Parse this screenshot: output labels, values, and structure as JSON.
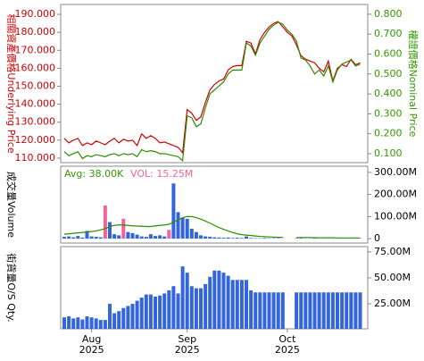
{
  "chart_data": [
    {
      "type": "line",
      "y_label": "相關資產價格Underlying Price",
      "y_label_color": "#cc0000",
      "y2_label": "權證價格Nominal Price",
      "y2_label_color": "#339900",
      "ylim": [
        107.5,
        195.5
      ],
      "yticks": [
        {
          "value": 110,
          "label": "110.000"
        },
        {
          "value": 120,
          "label": "120.000"
        },
        {
          "value": 130,
          "label": "130.000"
        },
        {
          "value": 140,
          "label": "140.000"
        },
        {
          "value": 150,
          "label": "150.000"
        },
        {
          "value": 160,
          "label": "160.000"
        },
        {
          "value": 170,
          "label": "170.000"
        },
        {
          "value": 180,
          "label": "180.000"
        },
        {
          "value": 190,
          "label": "190.000"
        }
      ],
      "y2lim": [
        0.055,
        0.849
      ],
      "y2ticks": [
        {
          "value": 0.1,
          "label": "0.100"
        },
        {
          "value": 0.2,
          "label": "0.200"
        },
        {
          "value": 0.3,
          "label": "0.300"
        },
        {
          "value": 0.4,
          "label": "0.400"
        },
        {
          "value": 0.5,
          "label": "0.500"
        },
        {
          "value": 0.6,
          "label": "0.600"
        },
        {
          "value": 0.7,
          "label": "0.700"
        },
        {
          "value": 0.8,
          "label": "0.800"
        }
      ],
      "series": [
        {
          "color": "#cc0000",
          "values": [
            121,
            118.5,
            120,
            121,
            117,
            118.5,
            117.5,
            119.5,
            118.5,
            117.5,
            119.5,
            121,
            118.5,
            120.5,
            119.5,
            120,
            117,
            123.5,
            121,
            122.5,
            121,
            118.5,
            119,
            118,
            117,
            116,
            113,
            137,
            135,
            131,
            133,
            141,
            148,
            151,
            153,
            154,
            159,
            161,
            161.5,
            161.5,
            175,
            174,
            168,
            176,
            180,
            183,
            185,
            186,
            183,
            180,
            178,
            173,
            167,
            165,
            164,
            163,
            160,
            158,
            164,
            153,
            160,
            162,
            161,
            165,
            162,
            163
          ]
        },
        {
          "color": "#2e8b00",
          "axis": "y2",
          "values": [
            0.11,
            0.09,
            0.1,
            0.11,
            0.075,
            0.09,
            0.085,
            0.095,
            0.09,
            0.085,
            0.095,
            0.1,
            0.09,
            0.1,
            0.095,
            0.1,
            0.085,
            0.12,
            0.11,
            0.115,
            0.11,
            0.1,
            0.1,
            0.095,
            0.09,
            0.085,
            0.065,
            0.29,
            0.28,
            0.235,
            0.25,
            0.33,
            0.4,
            0.42,
            0.44,
            0.46,
            0.5,
            0.52,
            0.52,
            0.52,
            0.656,
            0.64,
            0.594,
            0.656,
            0.69,
            0.725,
            0.745,
            0.76,
            0.75,
            0.72,
            0.7,
            0.665,
            0.58,
            0.57,
            0.54,
            0.5,
            0.52,
            0.49,
            0.54,
            0.46,
            0.52,
            0.55,
            0.56,
            0.57,
            0.54,
            0.55
          ]
        }
      ]
    },
    {
      "type": "bar",
      "y_label": "成交量Volume",
      "annotations": [
        {
          "text": "Avg: 38.00K",
          "color": "#339900"
        },
        {
          "text": "VOL: 15.25M",
          "color": "#ee6699"
        }
      ],
      "ylim": [
        -20,
        328
      ],
      "yticks": [
        0,
        {
          "value": 100,
          "label": "100.00M"
        },
        {
          "value": 200,
          "label": "200.00M"
        },
        {
          "value": 300,
          "label": "300.00M"
        }
      ],
      "series": [
        {
          "color": "#3366dd",
          "values": [
            8,
            10,
            6,
            12,
            5,
            35,
            10,
            8,
            6,
            null,
            75,
            20,
            15,
            null,
            30,
            25,
            18,
            10,
            8,
            20,
            12,
            15,
            10,
            null,
            250,
            120,
            95,
            90,
            45,
            30,
            15,
            10,
            8,
            6,
            5,
            4,
            5,
            3,
            4,
            3,
            10,
            3,
            2,
            2,
            3,
            2,
            2,
            2,
            1,
            null,
            null,
            2,
            2,
            1,
            1,
            2,
            1,
            1,
            1,
            1,
            1,
            1,
            1,
            1,
            1,
            1
          ]
        },
        {
          "color": "#ee6699",
          "values": [
            null,
            null,
            null,
            null,
            null,
            null,
            null,
            null,
            null,
            150,
            null,
            null,
            null,
            90,
            null,
            null,
            null,
            null,
            null,
            null,
            null,
            null,
            null,
            40,
            null,
            null,
            null,
            null,
            null,
            null,
            null,
            null,
            null,
            null,
            null,
            null,
            null,
            null,
            null,
            null,
            null,
            null,
            null,
            null,
            null,
            null,
            null,
            null,
            null,
            null,
            null,
            null,
            null,
            null,
            null,
            null,
            null,
            null,
            null,
            null,
            null,
            null,
            null,
            null,
            null,
            null
          ]
        },
        {
          "type": "line",
          "color": "#2e8b00",
          "values": [
            20,
            22,
            24,
            26,
            28,
            30,
            32,
            35,
            40,
            45,
            55,
            60,
            62,
            62,
            60,
            58,
            57,
            56,
            55,
            55,
            58,
            60,
            62,
            65,
            75,
            85,
            95,
            100,
            100,
            95,
            88,
            80,
            70,
            60,
            50,
            42,
            35,
            28,
            22,
            18,
            16,
            14,
            12,
            10,
            9,
            8,
            7,
            6,
            6,
            null,
            null,
            5,
            5,
            5,
            5,
            4,
            4,
            4,
            4,
            4,
            3,
            3,
            3,
            3,
            3,
            3
          ]
        }
      ]
    },
    {
      "type": "bar",
      "y_label": "街貨量O/S Qty.",
      "ylim": [
        1,
        80
      ],
      "yticks": [
        {
          "value": 25,
          "label": "25.00M"
        },
        {
          "value": 50,
          "label": "50.00M"
        },
        {
          "value": 75,
          "label": "75.00M"
        }
      ],
      "categories": [
        null,
        null,
        null,
        null,
        null,
        null,
        [
          "Aug",
          "2025"
        ],
        null,
        null,
        null,
        null,
        null,
        null,
        null,
        null,
        null,
        null,
        null,
        null,
        null,
        null,
        null,
        null,
        null,
        null,
        null,
        null,
        [
          "Sep",
          "2025"
        ],
        null,
        null,
        null,
        null,
        null,
        null,
        null,
        null,
        null,
        null,
        null,
        null,
        null,
        null,
        null,
        null,
        null,
        null,
        null,
        null,
        null,
        [
          "Oct",
          "2025"
        ],
        null,
        null,
        null,
        null,
        null,
        null,
        null,
        null,
        null,
        null,
        null,
        null,
        null,
        null,
        null,
        null
      ],
      "series": [
        {
          "color": "#3366dd",
          "values": [
            12,
            13,
            11,
            12,
            10,
            13,
            12,
            11,
            9.5,
            9.5,
            25,
            16,
            18,
            21,
            23,
            25,
            28,
            31,
            34,
            34,
            32,
            33,
            35,
            38,
            42,
            35,
            61,
            55,
            42,
            40,
            40,
            44,
            51,
            57,
            57,
            55,
            52,
            48,
            48,
            48,
            48,
            38,
            36,
            36,
            36,
            36,
            36,
            36,
            36,
            null,
            null,
            36,
            36,
            36,
            36,
            36,
            36,
            36,
            36,
            36,
            36,
            36,
            36,
            36,
            36,
            36
          ]
        }
      ]
    }
  ]
}
